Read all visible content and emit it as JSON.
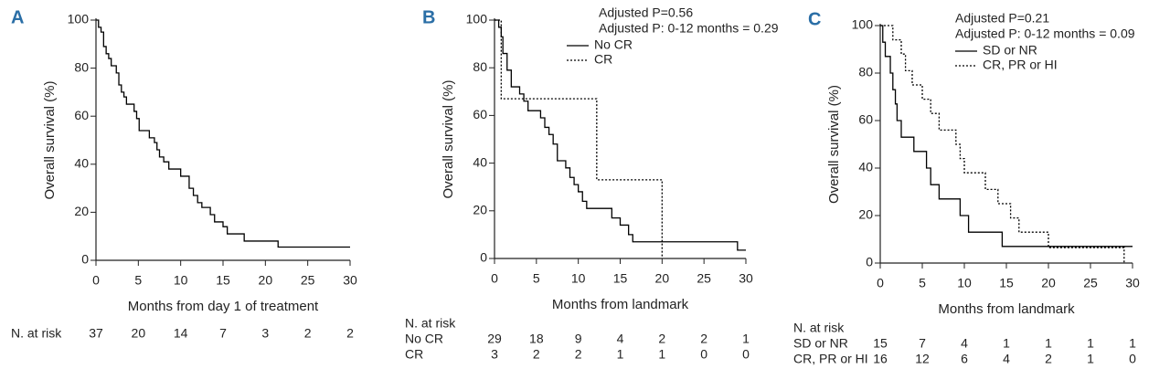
{
  "chart_data": [
    {
      "type": "step",
      "panel": "A",
      "xlabel": "Months from day 1 of treatment",
      "ylabel": "Overall survival (%)",
      "xlim": [
        0,
        30
      ],
      "ylim": [
        0,
        100
      ],
      "xticks": [
        0,
        5,
        10,
        15,
        20,
        25,
        30
      ],
      "yticks": [
        0,
        20,
        40,
        60,
        80,
        100
      ],
      "series": [
        {
          "color": "#000",
          "dash": "solid",
          "x": [
            0,
            0.3,
            0.6,
            0.9,
            1.2,
            1.5,
            1.8,
            2.4,
            2.7,
            3,
            3.3,
            3.6,
            4.5,
            4.8,
            5.1,
            6.3,
            6.9,
            7.2,
            7.5,
            8,
            8.6,
            10,
            11,
            11.5,
            12,
            12.5,
            13.5,
            14,
            15,
            15.5,
            17.5,
            21.5,
            30
          ],
          "values": [
            100,
            97,
            95,
            89,
            86,
            84,
            81,
            78,
            73,
            70,
            68,
            65,
            62,
            59,
            54,
            51,
            49,
            46,
            43,
            41,
            38,
            35,
            30,
            27,
            24,
            22,
            19,
            16,
            14,
            11,
            8,
            5.5,
            5.5
          ]
        }
      ],
      "risk_table": {
        "title": "N. at risk",
        "rows": [
          {
            "values": [
              37,
              20,
              14,
              7,
              3,
              2,
              2
            ]
          }
        ]
      }
    },
    {
      "type": "step",
      "panel": "B",
      "xlabel": "Months from landmark",
      "ylabel": "Overall survival (%)",
      "annotations": [
        "Adjusted P=0.56",
        "Adjusted P: 0-12 months = 0.29"
      ],
      "xlim": [
        0,
        30
      ],
      "ylim": [
        0,
        100
      ],
      "xticks": [
        0,
        5,
        10,
        15,
        20,
        25,
        30
      ],
      "yticks": [
        0,
        20,
        40,
        60,
        80,
        100
      ],
      "series": [
        {
          "name": "No CR",
          "color": "#000",
          "dash": "solid",
          "x": [
            0,
            0.5,
            0.8,
            1,
            1.5,
            2,
            3,
            3.5,
            4,
            5.5,
            6,
            6.5,
            7,
            7.5,
            8.5,
            9,
            9.5,
            10,
            10.5,
            11,
            14,
            15,
            16,
            16.5,
            29,
            30
          ],
          "values": [
            100,
            97,
            93,
            86,
            79,
            72,
            69,
            66,
            62,
            59,
            55,
            52,
            48,
            41,
            38,
            34,
            31,
            28,
            24,
            21,
            17,
            14,
            10,
            7,
            3.5,
            3.5
          ]
        },
        {
          "name": "CR",
          "color": "#000",
          "dash": "dotted",
          "x": [
            0,
            0.8,
            12.2,
            20
          ],
          "values": [
            100,
            67,
            33,
            0
          ]
        }
      ],
      "risk_table": {
        "title": "N. at risk",
        "rows": [
          {
            "name": "No CR",
            "values": [
              29,
              18,
              9,
              4,
              2,
              2,
              1
            ]
          },
          {
            "name": "CR",
            "values": [
              3,
              2,
              2,
              1,
              1,
              0,
              0
            ]
          }
        ]
      }
    },
    {
      "type": "step",
      "panel": "C",
      "xlabel": "Months from landmark",
      "ylabel": "Overall survival (%)",
      "annotations": [
        "Adjusted P=0.21",
        "Adjusted P: 0-12 months = 0.09"
      ],
      "xlim": [
        0,
        30
      ],
      "ylim": [
        0,
        100
      ],
      "xticks": [
        0,
        5,
        10,
        15,
        20,
        25,
        30
      ],
      "yticks": [
        0,
        20,
        40,
        60,
        80,
        100
      ],
      "series": [
        {
          "name": "SD or NR",
          "color": "#000",
          "dash": "solid",
          "x": [
            0,
            0.3,
            0.6,
            1.2,
            1.5,
            1.8,
            2,
            2.5,
            4,
            5.5,
            6,
            7,
            9.5,
            10.5,
            14.5,
            30
          ],
          "values": [
            100,
            93,
            87,
            80,
            73,
            67,
            60,
            53,
            47,
            40,
            33,
            27,
            20,
            13,
            7,
            7
          ]
        },
        {
          "name": "CR, PR or HI",
          "color": "#000",
          "dash": "dotted",
          "x": [
            0,
            1.5,
            2.5,
            3,
            3.8,
            5,
            6,
            7,
            9,
            9.5,
            10,
            12.5,
            14,
            15.5,
            16.5,
            20,
            29
          ],
          "values": [
            100,
            94,
            88,
            81,
            75,
            69,
            63,
            56,
            50,
            44,
            38,
            31,
            25,
            19,
            13,
            6.5,
            0
          ]
        }
      ],
      "risk_table": {
        "title": "N. at risk",
        "rows": [
          {
            "name": "SD or NR",
            "values": [
              15,
              7,
              4,
              1,
              1,
              1,
              1
            ]
          },
          {
            "name": "CR, PR or HI",
            "values": [
              16,
              12,
              6,
              4,
              2,
              1,
              0
            ]
          }
        ]
      }
    }
  ]
}
